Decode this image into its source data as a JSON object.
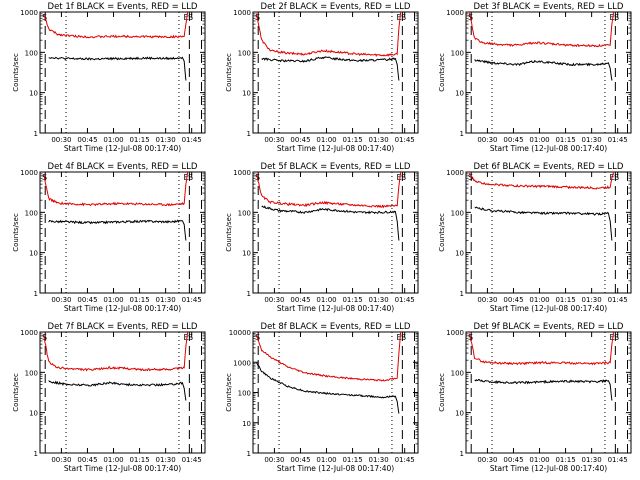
{
  "colors": {
    "events": "#000000",
    "lld": "#e00000",
    "axis": "#000000"
  },
  "shared": {
    "ylabel": "Counts/sec",
    "xlabel": "Start Time (12-Jul-08 00:17:40)",
    "x_ticks": [
      "00:30",
      "00:45",
      "01:00",
      "01:15",
      "01:30",
      "01:45"
    ],
    "y_scale": "log",
    "markers": {
      "start": "S",
      "end": "E",
      "end_s": "S"
    }
  },
  "chart_data": [
    {
      "type": "line",
      "title": "Det 1f BLACK = Events, RED = LLD",
      "ylim": [
        1,
        1000
      ],
      "y_ticks": [
        "1",
        "10",
        "100",
        "1000"
      ],
      "xlim_minutes_after_start": [
        0,
        95
      ],
      "series": [
        {
          "name": "Events",
          "x": [
            5,
            15,
            30,
            45,
            60,
            75,
            82,
            83,
            84
          ],
          "y": [
            75,
            70,
            68,
            70,
            72,
            70,
            75,
            60,
            20
          ]
        },
        {
          "name": "LLD",
          "x": [
            2,
            5,
            10,
            20,
            30,
            45,
            60,
            75,
            83,
            84,
            85
          ],
          "y": [
            900,
            380,
            280,
            250,
            240,
            250,
            245,
            240,
            250,
            500,
            1000
          ]
        }
      ],
      "vlines_dashed_min": [
        3,
        86,
        93
      ],
      "vlines_dotted_min": [
        15,
        80
      ]
    },
    {
      "type": "line",
      "title": "Det 2f BLACK = Events, RED = LLD",
      "ylim": [
        1,
        1000
      ],
      "y_ticks": [
        "1",
        "10",
        "100",
        "1000"
      ],
      "xlim_minutes_after_start": [
        0,
        95
      ],
      "series": [
        {
          "name": "Events",
          "x": [
            5,
            15,
            30,
            40,
            50,
            60,
            75,
            82,
            83,
            84
          ],
          "y": [
            70,
            62,
            60,
            75,
            68,
            62,
            65,
            70,
            50,
            20
          ]
        },
        {
          "name": "LLD",
          "x": [
            2,
            5,
            10,
            20,
            30,
            40,
            50,
            60,
            75,
            83,
            84,
            85
          ],
          "y": [
            900,
            200,
            110,
            95,
            90,
            110,
            100,
            90,
            85,
            90,
            400,
            1000
          ]
        }
      ],
      "vlines_dashed_min": [
        3,
        86,
        93
      ],
      "vlines_dotted_min": [
        15,
        80
      ]
    },
    {
      "type": "line",
      "title": "Det 3f BLACK = Events, RED = LLD",
      "ylim": [
        1,
        1000
      ],
      "y_ticks": [
        "1",
        "10",
        "100",
        "1000"
      ],
      "xlim_minutes_after_start": [
        0,
        95
      ],
      "series": [
        {
          "name": "Events",
          "x": [
            5,
            15,
            30,
            40,
            50,
            60,
            75,
            82,
            83,
            84
          ],
          "y": [
            65,
            55,
            50,
            60,
            55,
            50,
            50,
            55,
            40,
            20
          ]
        },
        {
          "name": "LLD",
          "x": [
            2,
            5,
            10,
            20,
            30,
            40,
            50,
            60,
            75,
            83,
            84,
            85
          ],
          "y": [
            900,
            220,
            170,
            155,
            150,
            175,
            160,
            150,
            145,
            150,
            500,
            1000
          ]
        }
      ],
      "vlines_dashed_min": [
        3,
        86,
        93
      ],
      "vlines_dotted_min": [
        15,
        80
      ]
    },
    {
      "type": "line",
      "title": "Det 4f BLACK = Events, RED = LLD",
      "ylim": [
        1,
        1000
      ],
      "y_ticks": [
        "1",
        "10",
        "100",
        "1000"
      ],
      "xlim_minutes_after_start": [
        0,
        95
      ],
      "series": [
        {
          "name": "Events",
          "x": [
            5,
            15,
            30,
            45,
            60,
            75,
            82,
            83,
            84
          ],
          "y": [
            60,
            58,
            55,
            58,
            60,
            58,
            62,
            50,
            20
          ]
        },
        {
          "name": "LLD",
          "x": [
            2,
            5,
            10,
            20,
            30,
            45,
            60,
            75,
            83,
            84,
            85
          ],
          "y": [
            900,
            220,
            170,
            160,
            155,
            165,
            160,
            155,
            165,
            500,
            1000
          ]
        }
      ],
      "vlines_dashed_min": [
        3,
        86,
        93
      ],
      "vlines_dotted_min": [
        15,
        80
      ]
    },
    {
      "type": "line",
      "title": "Det 5f BLACK = Events, RED = LLD",
      "ylim": [
        1,
        1000
      ],
      "y_ticks": [
        "1",
        "10",
        "100",
        "1000"
      ],
      "xlim_minutes_after_start": [
        0,
        95
      ],
      "series": [
        {
          "name": "Events",
          "x": [
            5,
            15,
            30,
            40,
            50,
            60,
            75,
            82,
            83,
            84
          ],
          "y": [
            140,
            110,
            100,
            120,
            110,
            100,
            100,
            105,
            60,
            20
          ]
        },
        {
          "name": "LLD",
          "x": [
            2,
            5,
            10,
            20,
            30,
            40,
            50,
            60,
            75,
            83,
            84,
            85
          ],
          "y": [
            900,
            250,
            180,
            160,
            150,
            175,
            160,
            150,
            140,
            145,
            450,
            1000
          ]
        }
      ],
      "vlines_dashed_min": [
        3,
        86,
        93
      ],
      "vlines_dotted_min": [
        15,
        80
      ]
    },
    {
      "type": "line",
      "title": "Det 6f BLACK = Events, RED = LLD",
      "ylim": [
        1,
        1000
      ],
      "y_ticks": [
        "1",
        "10",
        "100",
        "1000"
      ],
      "xlim_minutes_after_start": [
        0,
        95
      ],
      "series": [
        {
          "name": "Events",
          "x": [
            5,
            15,
            30,
            45,
            60,
            75,
            82,
            83,
            84
          ],
          "y": [
            130,
            110,
            100,
            95,
            95,
            90,
            95,
            60,
            20
          ]
        },
        {
          "name": "LLD",
          "x": [
            2,
            5,
            10,
            20,
            30,
            45,
            60,
            75,
            83,
            84,
            85
          ],
          "y": [
            900,
            600,
            520,
            480,
            450,
            440,
            420,
            400,
            420,
            700,
            1000
          ]
        }
      ],
      "vlines_dashed_min": [
        3,
        86,
        93
      ],
      "vlines_dotted_min": [
        15,
        80
      ]
    },
    {
      "type": "line",
      "title": "Det 7f BLACK = Events, RED = LLD",
      "ylim": [
        1,
        1000
      ],
      "y_ticks": [
        "1",
        "10",
        "100",
        "1000"
      ],
      "xlim_minutes_after_start": [
        0,
        95
      ],
      "series": [
        {
          "name": "Events",
          "x": [
            5,
            15,
            30,
            40,
            50,
            60,
            75,
            82,
            83,
            84
          ],
          "y": [
            60,
            50,
            48,
            55,
            50,
            48,
            50,
            55,
            40,
            20
          ]
        },
        {
          "name": "LLD",
          "x": [
            2,
            5,
            10,
            20,
            30,
            40,
            50,
            60,
            75,
            83,
            84,
            85
          ],
          "y": [
            900,
            180,
            130,
            120,
            115,
            130,
            125,
            115,
            120,
            130,
            450,
            1000
          ]
        }
      ],
      "vlines_dashed_min": [
        3,
        86,
        93
      ],
      "vlines_dotted_min": [
        15,
        80
      ]
    },
    {
      "type": "line",
      "title": "Det 8f BLACK = Events, RED = LLD",
      "ylim": [
        1,
        10000
      ],
      "y_ticks": [
        "1",
        "10",
        "100",
        "1000",
        "10000"
      ],
      "xlim_minutes_after_start": [
        0,
        95
      ],
      "series": [
        {
          "name": "Events",
          "x": [
            2,
            5,
            10,
            20,
            30,
            45,
            60,
            75,
            82,
            83,
            84
          ],
          "y": [
            1000,
            500,
            300,
            160,
            110,
            90,
            80,
            70,
            75,
            50,
            20
          ]
        },
        {
          "name": "LLD",
          "x": [
            2,
            5,
            10,
            20,
            30,
            45,
            60,
            75,
            83,
            84,
            85
          ],
          "y": [
            8000,
            2500,
            1500,
            700,
            450,
            330,
            280,
            250,
            300,
            2000,
            10000
          ]
        }
      ],
      "vlines_dashed_min": [
        3,
        86,
        93
      ],
      "vlines_dotted_min": [
        15,
        80
      ]
    },
    {
      "type": "line",
      "title": "Det 9f BLACK = Events, RED = LLD",
      "ylim": [
        1,
        1000
      ],
      "y_ticks": [
        "1",
        "10",
        "100",
        "1000"
      ],
      "xlim_minutes_after_start": [
        0,
        95
      ],
      "series": [
        {
          "name": "Events",
          "x": [
            5,
            15,
            30,
            45,
            60,
            75,
            82,
            83,
            84
          ],
          "y": [
            65,
            58,
            55,
            58,
            60,
            58,
            62,
            50,
            20
          ]
        },
        {
          "name": "LLD",
          "x": [
            2,
            5,
            10,
            20,
            30,
            45,
            60,
            75,
            83,
            84,
            85
          ],
          "y": [
            900,
            230,
            180,
            170,
            165,
            175,
            170,
            165,
            175,
            500,
            1000
          ]
        }
      ],
      "vlines_dashed_min": [
        3,
        86,
        93
      ],
      "vlines_dotted_min": [
        15,
        80
      ]
    }
  ]
}
